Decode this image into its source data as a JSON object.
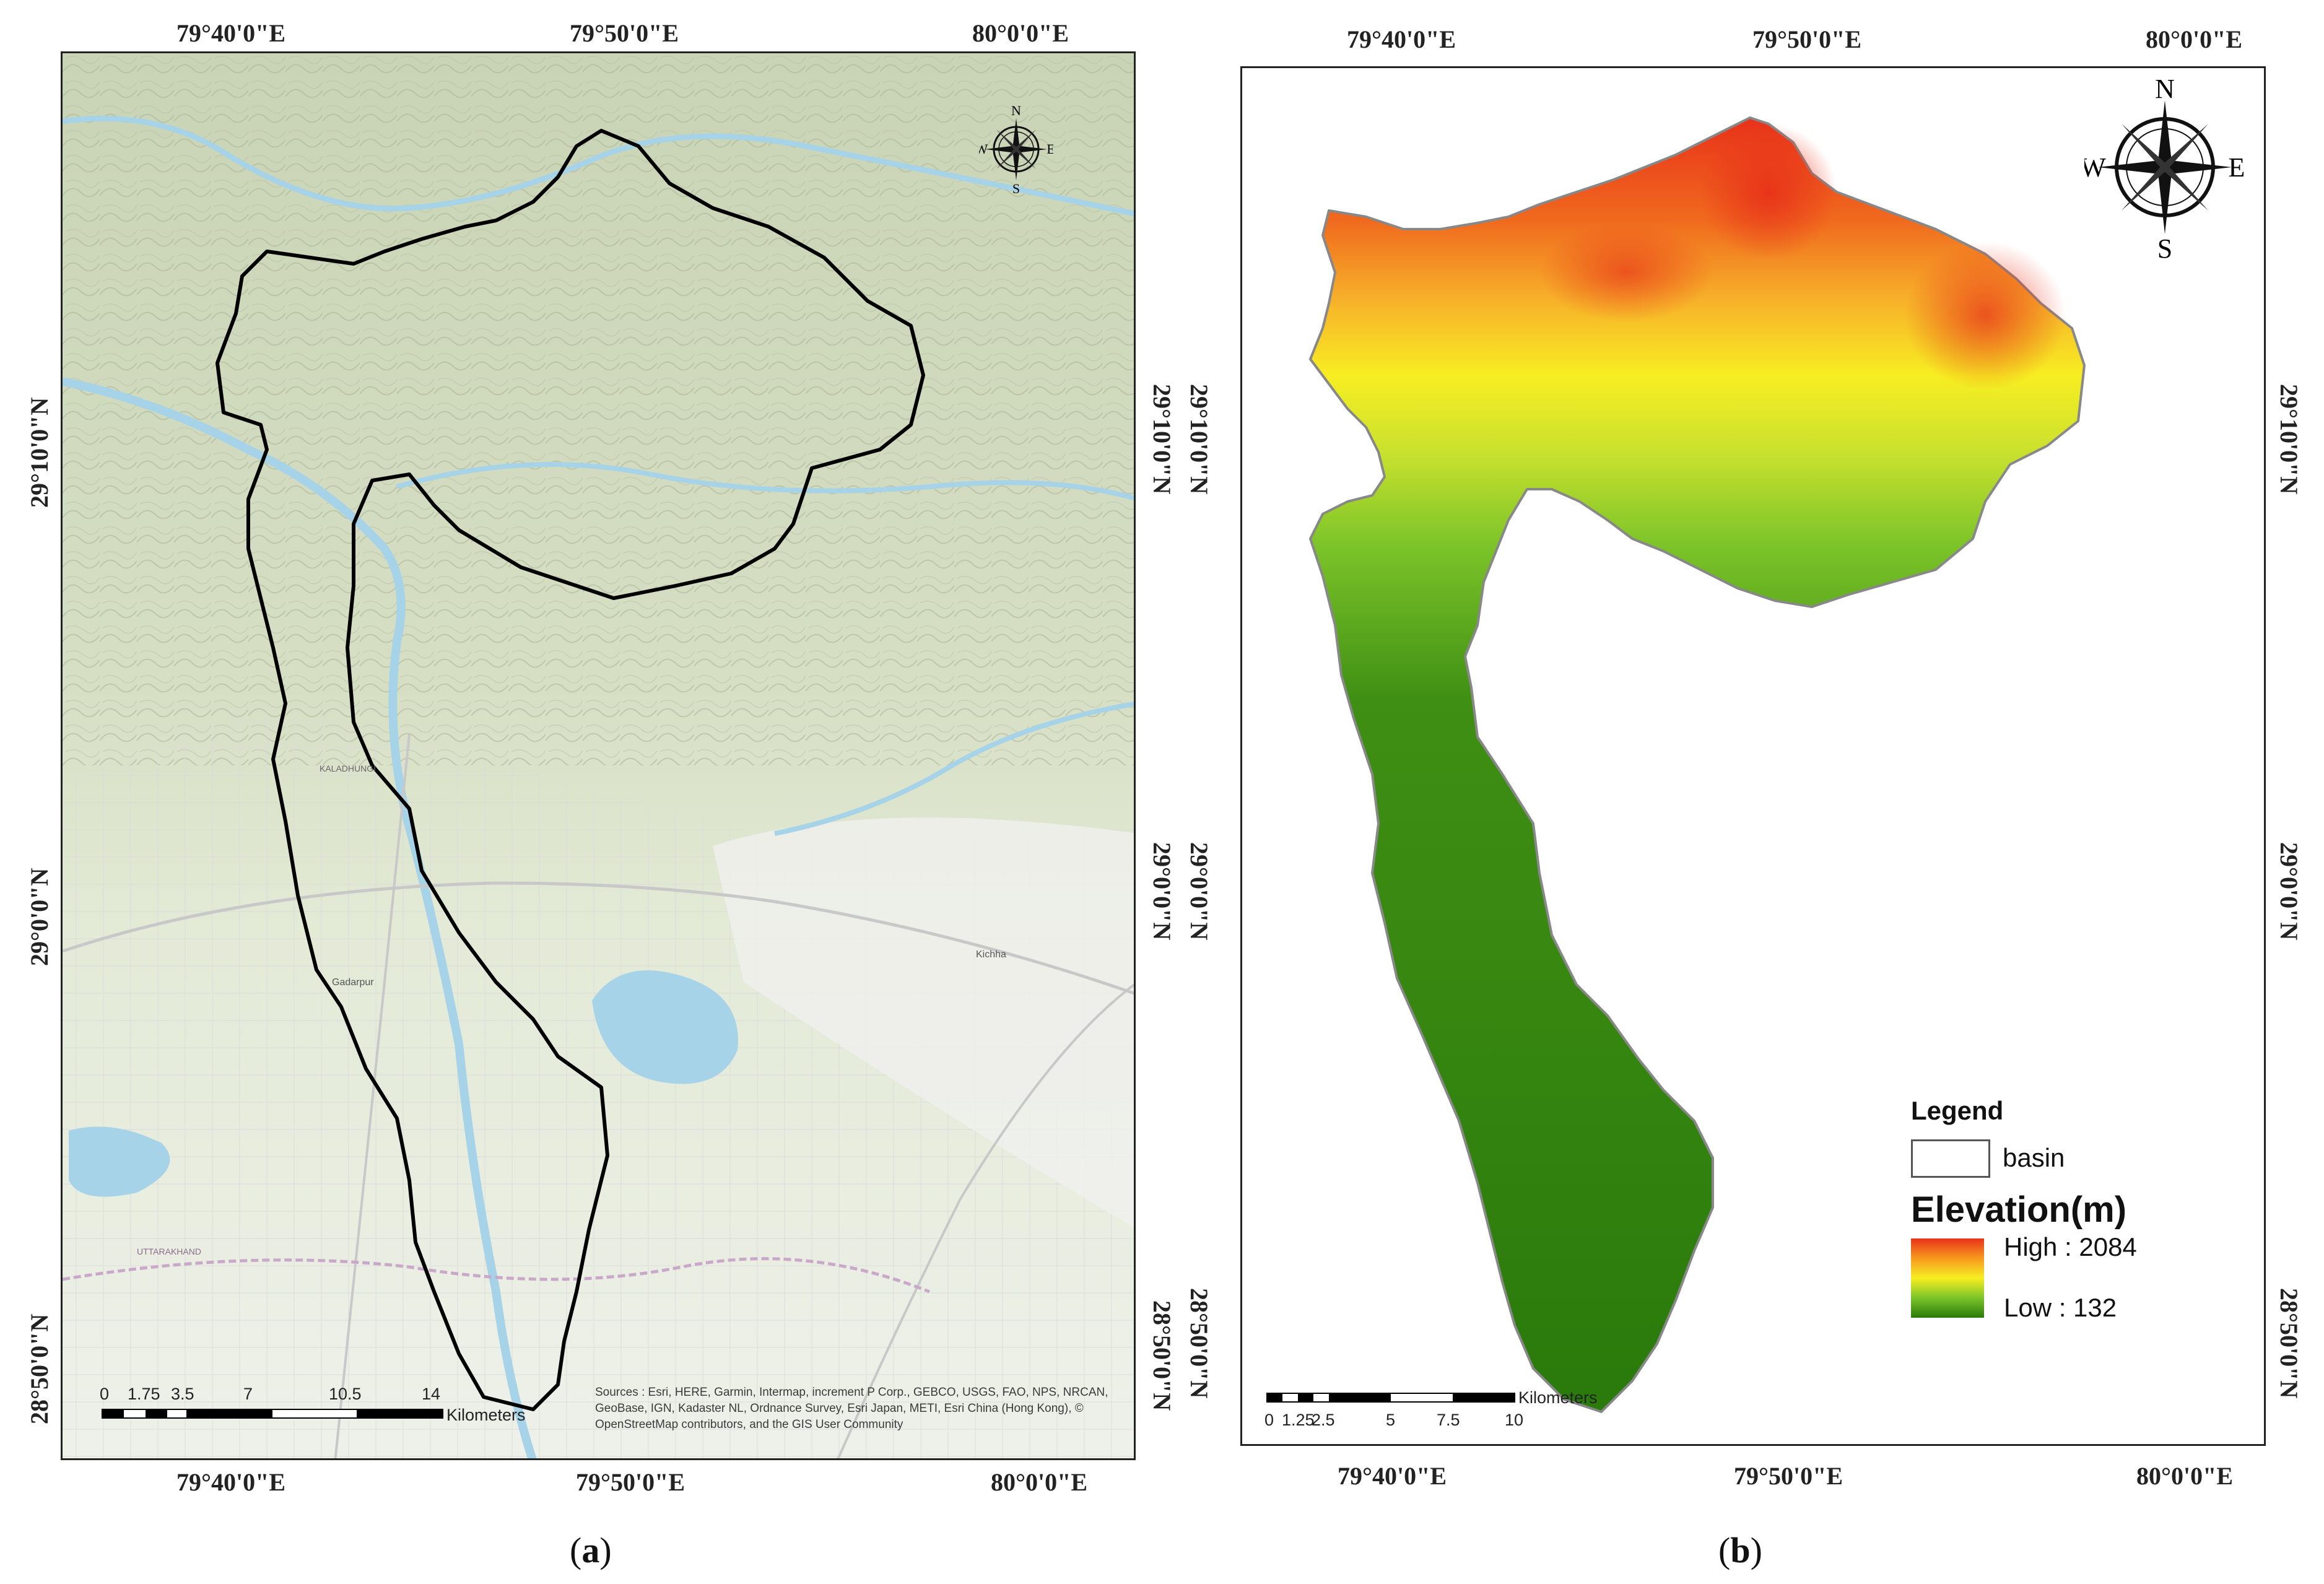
{
  "panel_a": {
    "caption_letter": "a",
    "top_lon_labels": [
      "79°40'0\"E",
      "79°50'0\"E",
      "80°0'0\"E"
    ],
    "bottom_lon_labels": [
      "79°40'0\"E",
      "79°50'0\"E",
      "80°0'0\"E"
    ],
    "right_lat_labels": [
      "29°10'0\"N",
      "29°0'0\"N",
      "28°50'0\"N"
    ],
    "left_lat_labels": [
      "29°10'0\"N",
      "29°0'0\"N",
      "28°50'0\"N"
    ],
    "compass": {
      "n": "N",
      "s": "S",
      "e": "E",
      "w": "W"
    },
    "scalebar": {
      "ticks": [
        "0",
        "1.75",
        "3.5",
        "7",
        "10.5",
        "14"
      ],
      "unit": "Kilometers"
    },
    "map_labels": {
      "town_1": "Gadarpur",
      "town_2": "Kichha",
      "road": "KALADHUNGI",
      "state": "UTTARAKHAND"
    },
    "sources": "Sources : Esri, HERE, Garmin, Intermap, increment P Corp., GEBCO, USGS, FAO, NPS, NRCAN, GeoBase, IGN, Kadaster NL, Ordnance Survey, Esri Japan, METI, Esri China (Hong Kong), © OpenStreetMap contributors, and the GIS User Community"
  },
  "panel_b": {
    "caption_letter": "b",
    "top_lon_labels": [
      "79°40'0\"E",
      "79°50'0\"E",
      "80°0'0\"E"
    ],
    "bottom_lon_labels": [
      "79°40'0\"E",
      "79°50'0\"E",
      "80°0'0\"E"
    ],
    "right_lat_labels": [
      "29°10'0\"N",
      "29°0'0\"N",
      "28°50'0\"N"
    ],
    "left_lat_labels": [
      "29°10'0\"N",
      "29°0'0\"N",
      "28°50'0\"N"
    ],
    "compass": {
      "n": "N",
      "s": "S",
      "e": "E",
      "w": "W"
    },
    "scalebar": {
      "ticks": [
        "0",
        "1.25",
        "2.5",
        "5",
        "7.5",
        "10"
      ],
      "unit": "Kilometers"
    },
    "legend": {
      "title": "Legend",
      "basin_label": "basin",
      "elevation_title": "Elevation(m)",
      "high_label": "High : 2084",
      "low_label": "Low : 132",
      "high_color": "#e8321a",
      "mid_color": "#f7ee22",
      "low_color": "#2a7a0c"
    }
  }
}
